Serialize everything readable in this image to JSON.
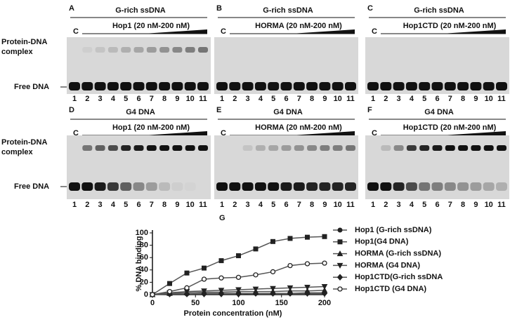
{
  "gel_panels": [
    {
      "letter": "A",
      "title": "G-rich ssDNA",
      "condition": "Hop1 (20 nM-200 nM)"
    },
    {
      "letter": "B",
      "title": "G-rich ssDNA",
      "condition": "HORMA (20 nM-200 nM)"
    },
    {
      "letter": "C",
      "title": "G-rich ssDNA",
      "condition": "Hop1CTD (20 nM-200 nM)"
    },
    {
      "letter": "D",
      "title": "G4 DNA",
      "condition": "Hop1 (20 nM-200 nM)"
    },
    {
      "letter": "E",
      "title": "G4 DNA",
      "condition": "HORMA (20 nM-200 nM)"
    },
    {
      "letter": "F",
      "title": "G4 DNA",
      "condition": "Hop1CTD (20 nM-200 nM)"
    }
  ],
  "control_label": "C",
  "lane_labels": [
    "1",
    "2",
    "3",
    "4",
    "5",
    "6",
    "7",
    "8",
    "9",
    "10",
    "11"
  ],
  "complex_label": [
    "Protein-DNA",
    "complex"
  ],
  "free_label": "Free DNA",
  "chart_letter": "G",
  "chart_data": {
    "type": "line",
    "y_label": "% DNA binding",
    "x_label": "Protein concentration (nM)",
    "x": [
      0,
      20,
      40,
      60,
      80,
      100,
      120,
      140,
      160,
      180,
      200
    ],
    "xlim": [
      0,
      200
    ],
    "xticks": [
      0,
      50,
      100,
      150,
      200
    ],
    "ylim": [
      0,
      100
    ],
    "yticks": [
      0,
      20,
      40,
      60,
      80,
      100
    ],
    "series": [
      {
        "name": "Hop1 (G-rich ssDNA)",
        "marker": "circle",
        "color": "#222222",
        "values": [
          0,
          1,
          1,
          2,
          2,
          2,
          2,
          2,
          2,
          3,
          3
        ]
      },
      {
        "name": "Hop1(G4 DNA)",
        "marker": "square",
        "color": "#222222",
        "values": [
          0,
          18,
          35,
          43,
          55,
          63,
          74,
          86,
          91,
          93,
          94
        ]
      },
      {
        "name": "HORMA (G-rich ssDNA)",
        "marker": "triangle",
        "color": "#222222",
        "values": [
          0,
          2,
          3,
          4,
          4,
          5,
          5,
          5,
          6,
          6,
          7
        ]
      },
      {
        "name": "HORMA (G4 DNA)",
        "marker": "triangle-down",
        "color": "#222222",
        "values": [
          0,
          3,
          5,
          6,
          7,
          8,
          9,
          10,
          11,
          12,
          13
        ]
      },
      {
        "name": "Hop1CTD(G-rich ssDNA",
        "marker": "diamond",
        "color": "#222222",
        "values": [
          0,
          1,
          1,
          1,
          1,
          1,
          2,
          2,
          2,
          2,
          2
        ]
      },
      {
        "name": "Hop1CTD (G4 DNA)",
        "marker": "open-circle",
        "color": "#222222",
        "values": [
          0,
          5,
          11,
          25,
          27,
          28,
          32,
          37,
          47,
          50,
          51
        ]
      }
    ]
  }
}
